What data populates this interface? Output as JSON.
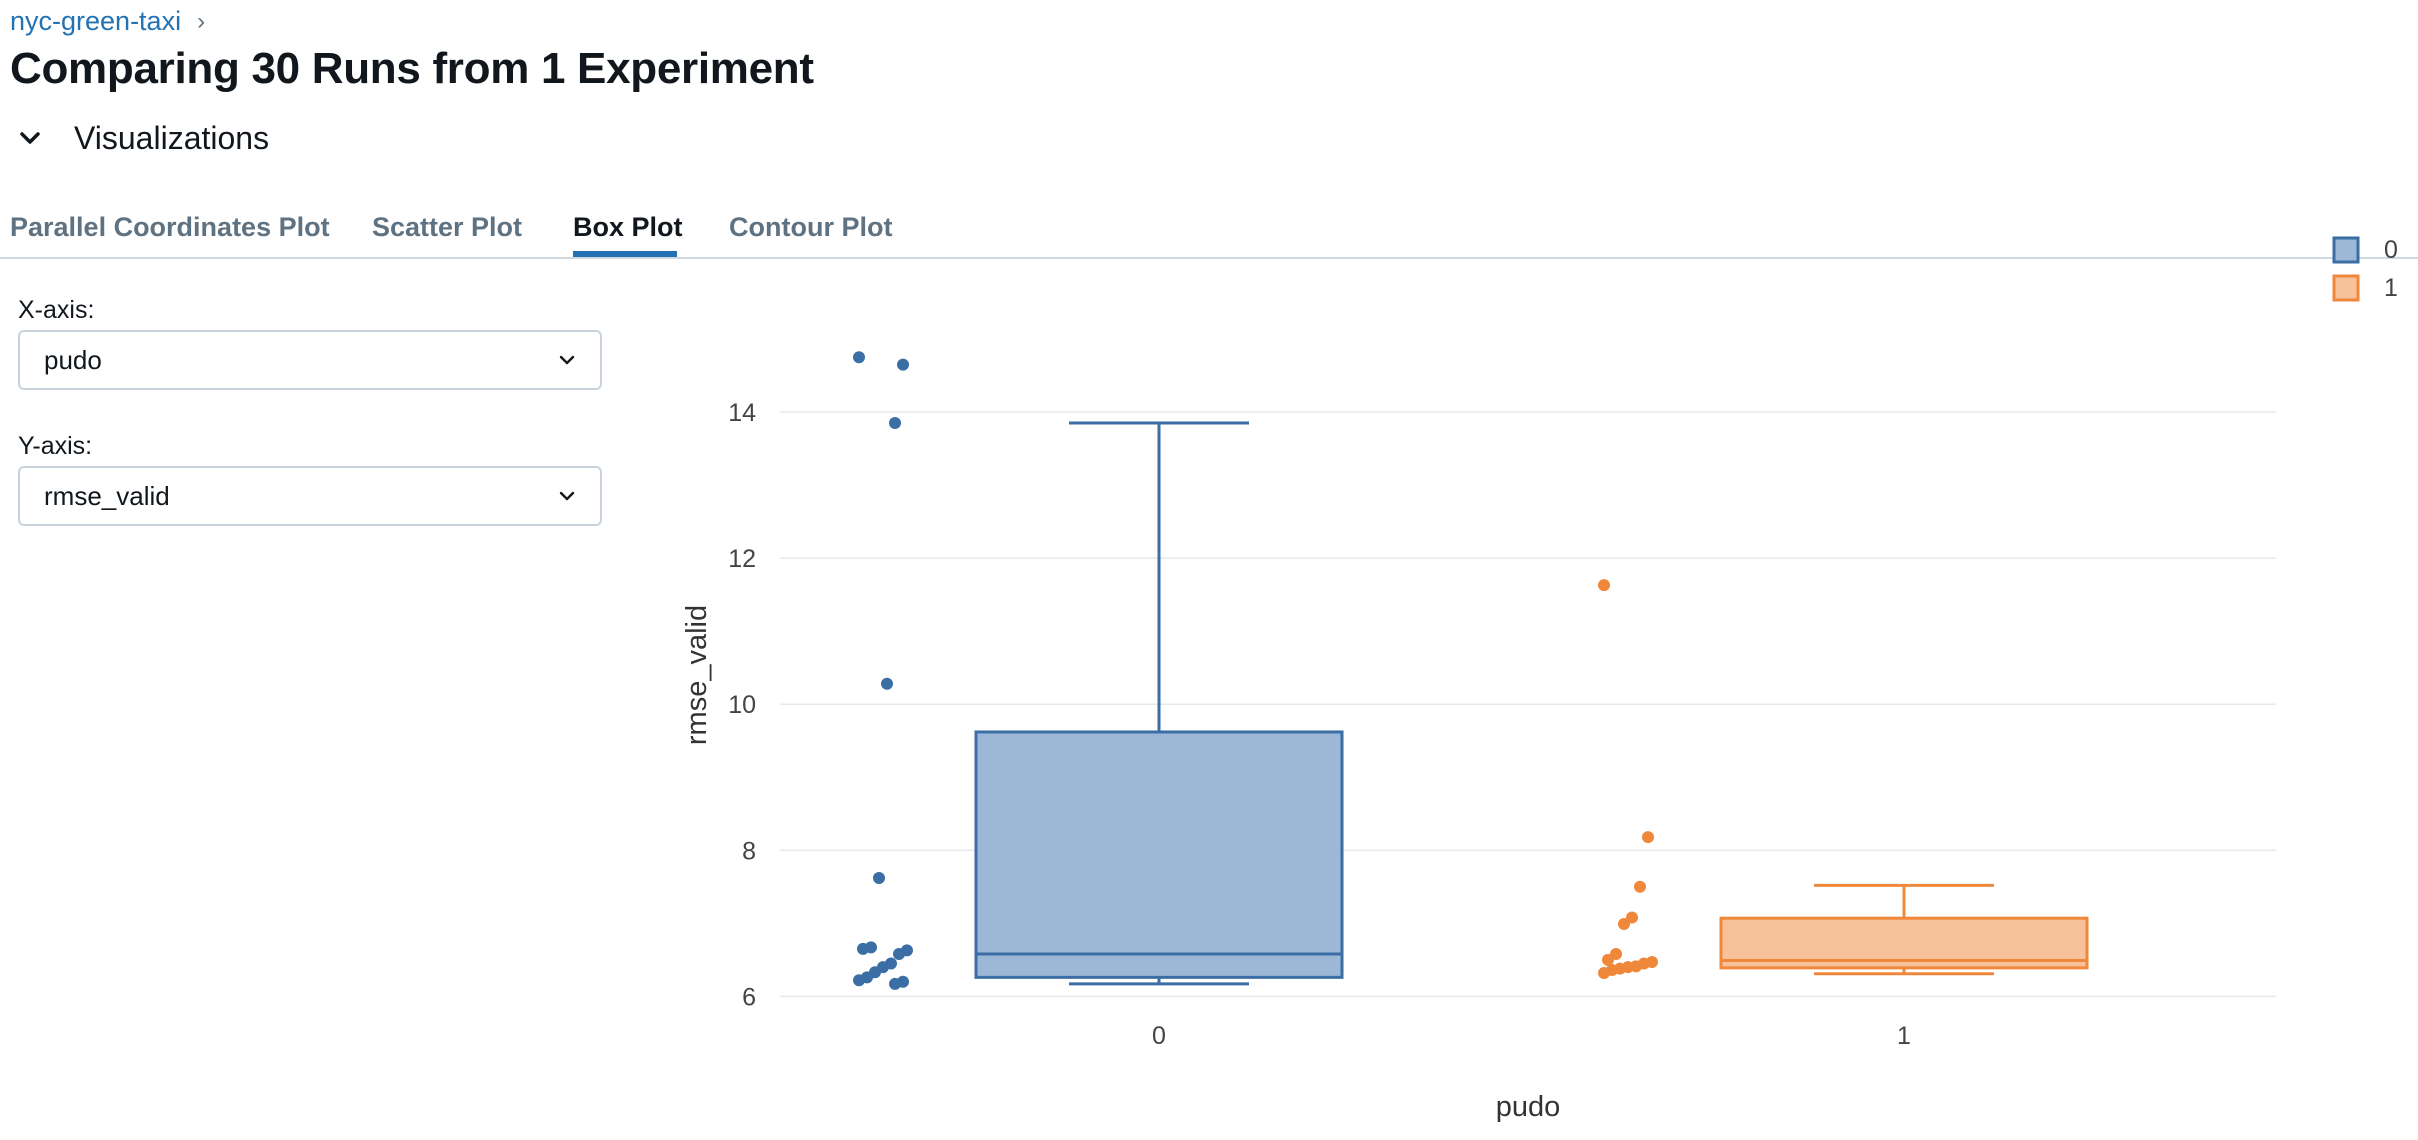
{
  "breadcrumb": {
    "experiment": "nyc-green-taxi",
    "separator": "›"
  },
  "page": {
    "title": "Comparing 30 Runs from 1 Experiment"
  },
  "visualizations": {
    "section_title": "Visualizations",
    "tabs": [
      {
        "label": "Parallel Coordinates Plot",
        "active": false
      },
      {
        "label": "Scatter Plot",
        "active": false
      },
      {
        "label": "Box Plot",
        "active": true
      },
      {
        "label": "Contour Plot",
        "active": false
      }
    ]
  },
  "controls": {
    "x_axis_label": "X-axis:",
    "x_axis_value": "pudo",
    "y_axis_label": "Y-axis:",
    "y_axis_value": "rmse_valid"
  },
  "colors": {
    "accent": "#2272b4",
    "series0": "#3a6ea5",
    "series0_fill": "#9db8d6",
    "series1": "#f0883c",
    "series1_fill": "#f7c19a",
    "grid": "#e5e9ee"
  },
  "chart_data": {
    "type": "box",
    "xlabel": "pudo",
    "ylabel": "rmse_valid",
    "categories": [
      "0",
      "1"
    ],
    "ylim": [
      5.95,
      14.85
    ],
    "yticks": [
      6,
      8,
      10,
      12,
      14
    ],
    "grid": true,
    "legend_position": "top-right",
    "series": [
      {
        "name": "0",
        "min": 6.17,
        "q1": 6.26,
        "median": 6.58,
        "q3": 9.62,
        "max": 13.85,
        "points": [
          14.75,
          14.65,
          13.85,
          10.28,
          7.62,
          6.67,
          6.65,
          6.63,
          6.58,
          6.45,
          6.4,
          6.33,
          6.26,
          6.22,
          6.2,
          6.17
        ]
      },
      {
        "name": "1",
        "min": 6.31,
        "q1": 6.39,
        "median": 6.49,
        "q3": 7.07,
        "max": 7.52,
        "points": [
          11.63,
          8.18,
          7.5,
          7.08,
          6.99,
          6.58,
          6.5,
          6.47,
          6.45,
          6.41,
          6.4,
          6.38,
          6.36,
          6.32
        ]
      }
    ]
  }
}
